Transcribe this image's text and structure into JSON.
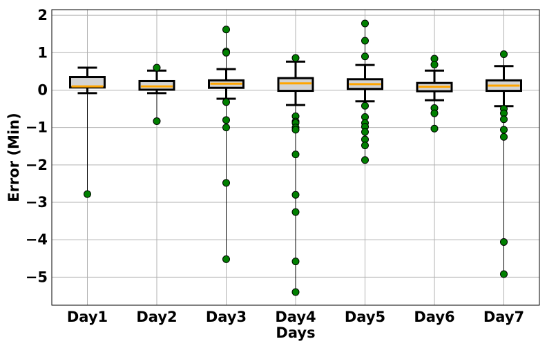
{
  "chart_data": {
    "type": "box",
    "xlabel": "Days",
    "ylabel": "Error (Min)",
    "ylim": [
      -5.75,
      2.15
    ],
    "yticks": [
      2,
      1,
      0,
      -1,
      -2,
      -3,
      -4,
      -5
    ],
    "ytick_labels": [
      "2",
      "1",
      "0",
      "−1",
      "−2",
      "−3",
      "−4",
      "−5"
    ],
    "categories": [
      "Day1",
      "Day2",
      "Day3",
      "Day4",
      "Day5",
      "Day6",
      "Day7"
    ],
    "grid": true,
    "colors": {
      "box_fill": "#d3d3d3",
      "box_edge": "#000000",
      "median": "#ffa500",
      "point_fill": "#008000",
      "point_edge": "#000000",
      "grid": "#b0b0b0"
    },
    "boxes": [
      {
        "name": "Day1",
        "q1": 0.07,
        "median": 0.1,
        "q3": 0.35,
        "whisker_low": -0.08,
        "whisker_high": 0.6
      },
      {
        "name": "Day2",
        "q1": 0.01,
        "median": 0.1,
        "q3": 0.24,
        "whisker_low": -0.08,
        "whisker_high": 0.52
      },
      {
        "name": "Day3",
        "q1": 0.06,
        "median": 0.17,
        "q3": 0.26,
        "whisker_low": -0.23,
        "whisker_high": 0.56
      },
      {
        "name": "Day4",
        "q1": -0.02,
        "median": 0.18,
        "q3": 0.32,
        "whisker_low": -0.4,
        "whisker_high": 0.76
      },
      {
        "name": "Day5",
        "q1": 0.03,
        "median": 0.16,
        "q3": 0.29,
        "whisker_low": -0.3,
        "whisker_high": 0.67
      },
      {
        "name": "Day6",
        "q1": -0.03,
        "median": 0.09,
        "q3": 0.19,
        "whisker_low": -0.27,
        "whisker_high": 0.52
      },
      {
        "name": "Day7",
        "q1": -0.02,
        "median": 0.12,
        "q3": 0.26,
        "whisker_low": -0.43,
        "whisker_high": 0.64
      }
    ],
    "points": [
      {
        "day": "Day1",
        "values": [
          -2.78
        ]
      },
      {
        "day": "Day2",
        "values": [
          0.6,
          -0.83
        ]
      },
      {
        "day": "Day3",
        "values": [
          1.62,
          1.03,
          1.0,
          -0.32,
          -0.8,
          -1.0,
          -2.48,
          -4.52
        ]
      },
      {
        "day": "Day4",
        "values": [
          0.86,
          -0.7,
          -0.84,
          -0.88,
          -1.0,
          -1.06,
          -1.72,
          -2.8,
          -3.26,
          -4.58,
          -5.4
        ]
      },
      {
        "day": "Day5",
        "values": [
          1.78,
          1.32,
          0.9,
          -0.42,
          -0.72,
          -0.88,
          -0.98,
          -1.12,
          -1.32,
          -1.48,
          -1.87
        ]
      },
      {
        "day": "Day6",
        "values": [
          0.84,
          0.68,
          -0.48,
          -0.62,
          -1.03
        ]
      },
      {
        "day": "Day7",
        "values": [
          0.96,
          -0.5,
          -0.62,
          -0.78,
          -1.06,
          -1.25,
          -4.06,
          -4.92
        ]
      }
    ]
  }
}
